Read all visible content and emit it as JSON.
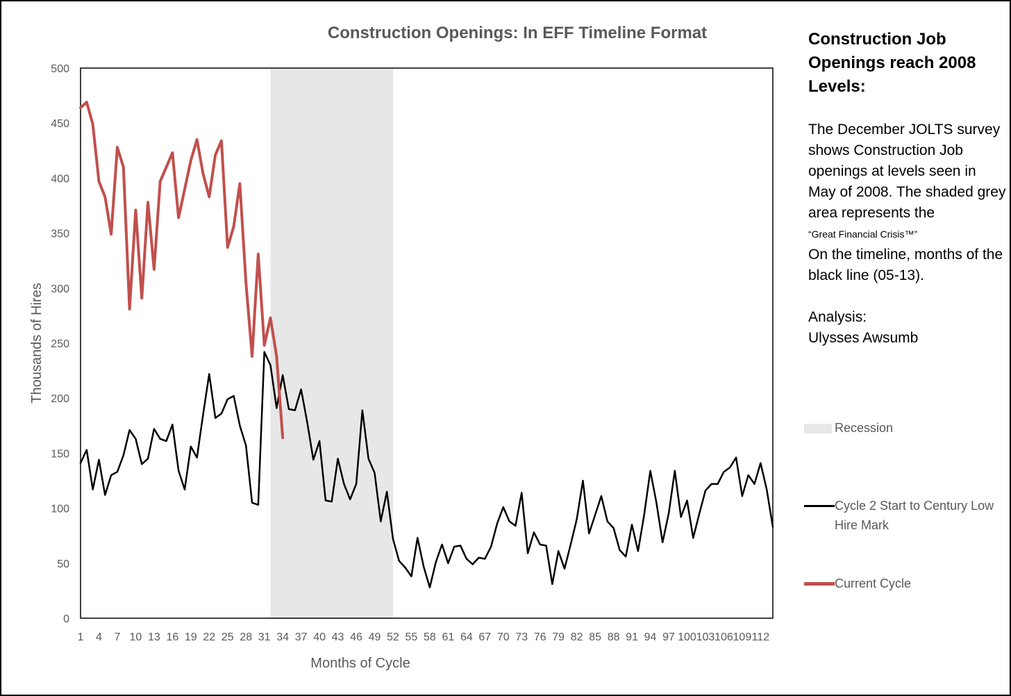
{
  "chart_data": {
    "type": "line",
    "title": "Construction Openings: In EFF Timeline Format",
    "xlabel": "Months of Cycle",
    "ylabel": "Thousands of Hires",
    "ylim": [
      0,
      500
    ],
    "yticks": [
      0,
      50,
      100,
      150,
      200,
      250,
      300,
      350,
      400,
      450,
      500
    ],
    "xticks": [
      1,
      4,
      7,
      10,
      13,
      16,
      19,
      22,
      25,
      28,
      31,
      34,
      37,
      40,
      43,
      46,
      49,
      52,
      55,
      58,
      61,
      64,
      67,
      70,
      73,
      76,
      79,
      82,
      85,
      88,
      91,
      94,
      97,
      100,
      103,
      106,
      109,
      112
    ],
    "xrange": [
      1,
      114
    ],
    "recession": {
      "name": "Recession",
      "start": 32,
      "end": 52
    },
    "series": [
      {
        "name": "Cycle 2 Start to Century Low Hire Mark",
        "color": "#000000",
        "values": [
          141,
          153,
          117,
          144,
          112,
          130,
          133,
          148,
          171,
          163,
          140,
          145,
          172,
          163,
          161,
          176,
          134,
          117,
          156,
          146,
          185,
          222,
          182,
          186,
          199,
          202,
          175,
          157,
          105,
          103,
          242,
          230,
          191,
          221,
          190,
          189,
          208,
          178,
          144,
          161,
          107,
          106,
          145,
          122,
          108,
          122,
          189,
          145,
          132,
          88,
          115,
          72,
          52,
          46,
          38,
          73,
          47,
          28,
          51,
          67,
          50,
          65,
          66,
          54,
          49,
          55,
          54,
          65,
          86,
          101,
          88,
          84,
          114,
          59,
          78,
          67,
          66,
          31,
          61,
          45,
          67,
          90,
          125,
          77,
          94,
          111,
          88,
          82,
          62,
          56,
          85,
          61,
          94,
          134,
          105,
          69,
          95,
          134,
          92,
          107,
          73,
          95,
          116,
          122,
          122,
          133,
          137,
          146,
          111,
          130,
          122,
          141,
          117,
          83
        ]
      },
      {
        "name": "Current Cycle",
        "color": "#c0504d",
        "values": [
          464,
          469,
          449,
          397,
          383,
          349,
          428,
          410,
          281,
          371,
          291,
          378,
          317,
          397,
          410,
          423,
          364,
          390,
          416,
          435,
          404,
          383,
          421,
          434,
          337,
          356,
          395,
          305,
          238,
          331,
          248,
          273,
          238,
          164
        ]
      }
    ],
    "legend": {
      "placement": "right"
    }
  },
  "sidebar": {
    "heading": "Construction Job Openings reach 2008 Levels:",
    "body_main": "The December JOLTS survey shows Construction Job openings at levels seen in May of 2008. The shaded grey area represents the",
    "body_small": "“Great Financial Crisis™”",
    "body_tail": "On the timeline, months of the black line (05-13).",
    "analysis_label": "Analysis:",
    "analysis_name": "Ulysses Awsumb"
  }
}
